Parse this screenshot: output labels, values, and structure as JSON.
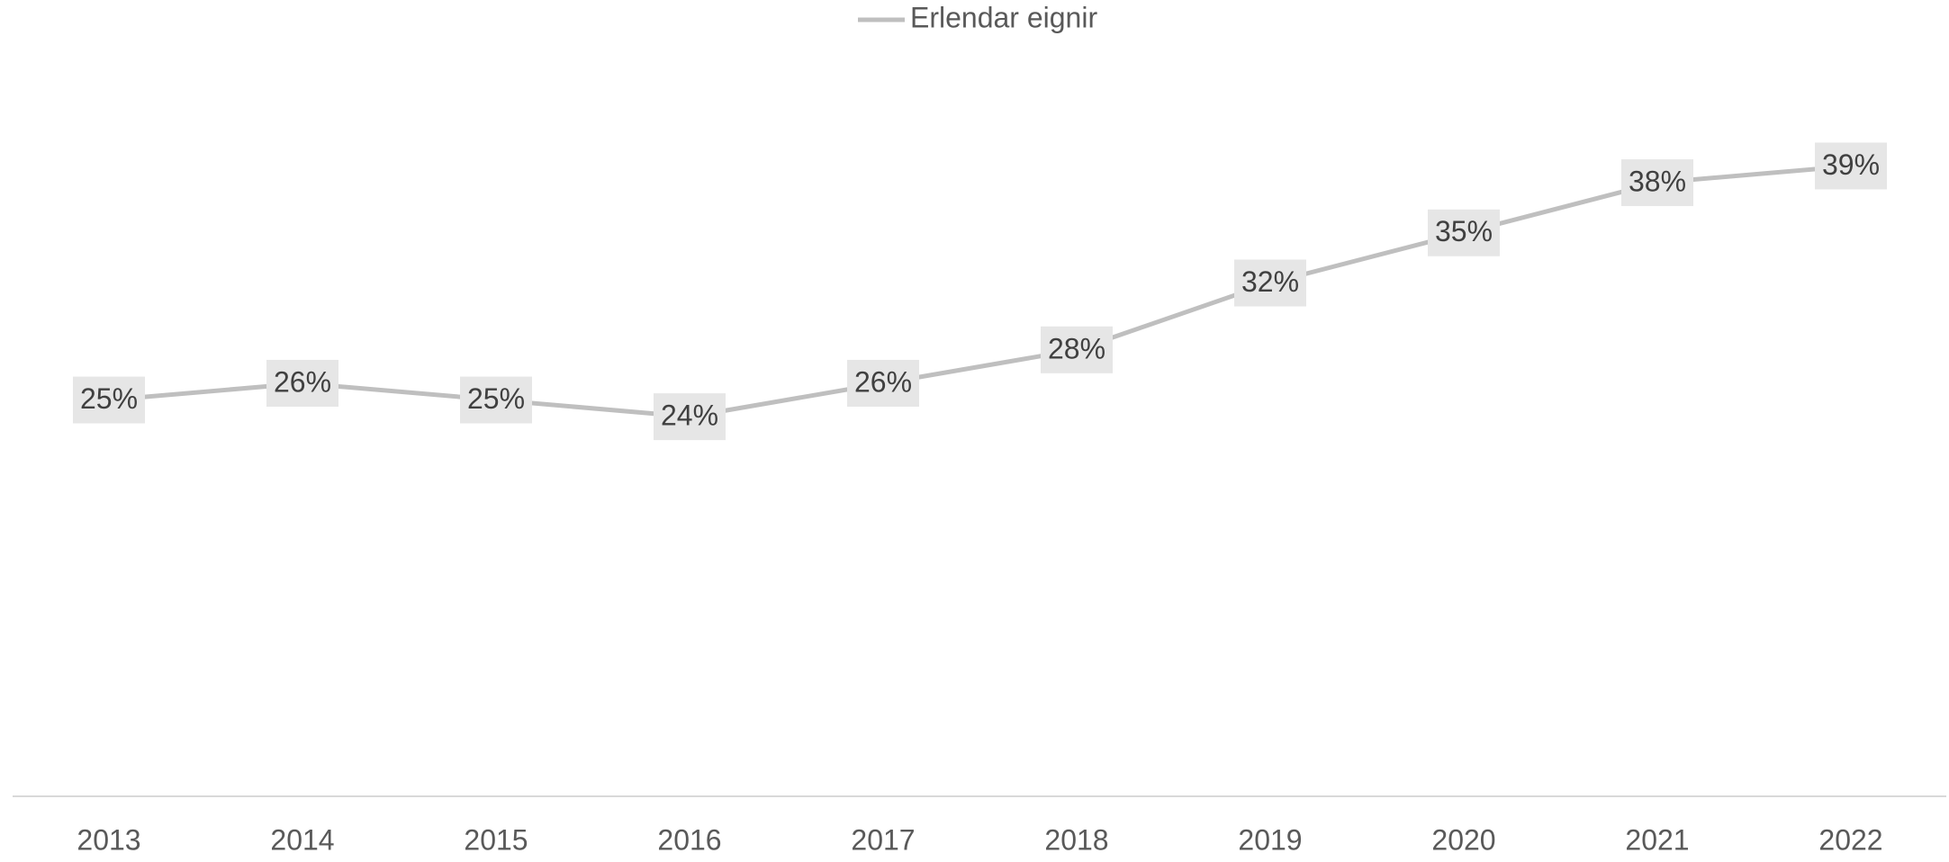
{
  "chart_data": {
    "type": "line",
    "categories": [
      "2013",
      "2014",
      "2015",
      "2016",
      "2017",
      "2018",
      "2019",
      "2020",
      "2021",
      "2022"
    ],
    "series": [
      {
        "name": "Erlendar eignir",
        "color": "#bfbfbf",
        "values": [
          25,
          26,
          25,
          24,
          26,
          28,
          32,
          35,
          38,
          39
        ],
        "value_labels": [
          "25%",
          "26%",
          "25%",
          "24%",
          "26%",
          "28%",
          "32%",
          "35%",
          "38%",
          "39%"
        ]
      }
    ],
    "ylim": [
      0,
      45
    ],
    "legend": "top"
  }
}
